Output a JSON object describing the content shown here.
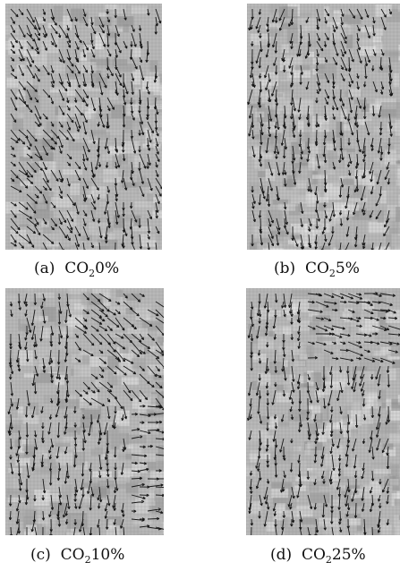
{
  "figure": {
    "panels": [
      {
        "id": "a",
        "letter": "(a)",
        "formula_main": "CO",
        "formula_sub": "2",
        "value": "0%"
      },
      {
        "id": "b",
        "letter": "(b)",
        "formula_main": "CO",
        "formula_sub": "2",
        "value": "5%"
      },
      {
        "id": "c",
        "letter": "(c)",
        "formula_main": "CO",
        "formula_sub": "2",
        "value": "10%"
      },
      {
        "id": "d",
        "letter": "(d)",
        "formula_main": "CO",
        "formula_sub": "2",
        "value": "25%"
      }
    ],
    "colors": {
      "field_background": "#b8b8b8",
      "grid_line": "#8c8c8c",
      "vector": "#151515"
    },
    "content_icon": "velocity-vector-field-image"
  }
}
